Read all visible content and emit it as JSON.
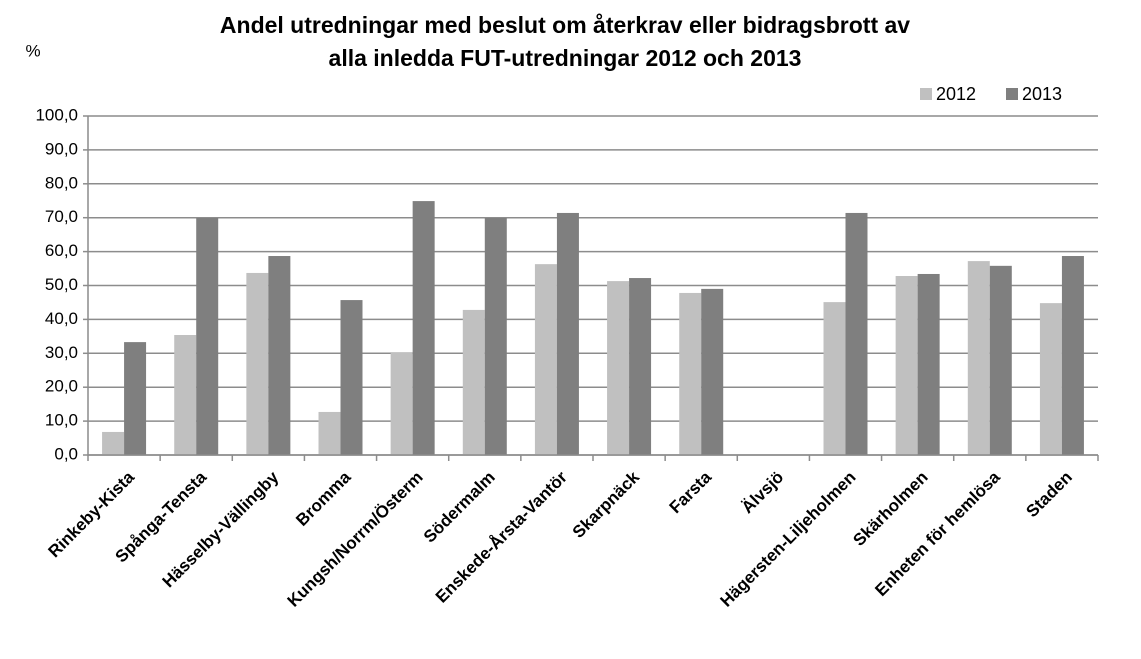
{
  "chart_data": {
    "type": "bar",
    "title": [
      "Andel utredningar med beslut om återkrav eller bidragsbrott av",
      "alla inledda FUT-utredningar 2012 och 2013"
    ],
    "y_label": "%",
    "categories": [
      "Rinkeby-Kista",
      "Spånga-Tensta",
      "Hässelby-Vällingby",
      "Bromma",
      "Kungsh/Norrm/Österm",
      "Södermalm",
      "Enskede-Årsta-Vantör",
      "Skarpnäck",
      "Farsta",
      "Älvsjö",
      "Hägersten-Liljeholmen",
      "Skärholmen",
      "Enheten för hemlösa",
      "Staden"
    ],
    "series": [
      {
        "name": "2012",
        "color": "#c0c0c0",
        "values": [
          6.8,
          35.4,
          53.7,
          12.7,
          30.1,
          42.8,
          56.3,
          51.3,
          47.8,
          null,
          45.1,
          52.8,
          57.2,
          44.8
        ]
      },
      {
        "name": "2013",
        "color": "#7f7f7f",
        "values": [
          33.3,
          69.9,
          58.7,
          45.7,
          74.9,
          69.9,
          71.4,
          52.2,
          49.0,
          null,
          71.4,
          53.4,
          55.8,
          58.7
        ]
      }
    ],
    "ylim": [
      0,
      100
    ],
    "yticks": [
      {
        "value": 0,
        "label": "0,0"
      },
      {
        "value": 10,
        "label": "10,0"
      },
      {
        "value": 20,
        "label": "20,0"
      },
      {
        "value": 30,
        "label": "30,0"
      },
      {
        "value": 40,
        "label": "40,0"
      },
      {
        "value": 50,
        "label": "50,0"
      },
      {
        "value": 60,
        "label": "60,0"
      },
      {
        "value": 70,
        "label": "70,0"
      },
      {
        "value": 80,
        "label": "80,0"
      },
      {
        "value": 90,
        "label": "90,0"
      },
      {
        "value": 100,
        "label": "100,0"
      }
    ],
    "grid": true,
    "legend": "top-right"
  }
}
